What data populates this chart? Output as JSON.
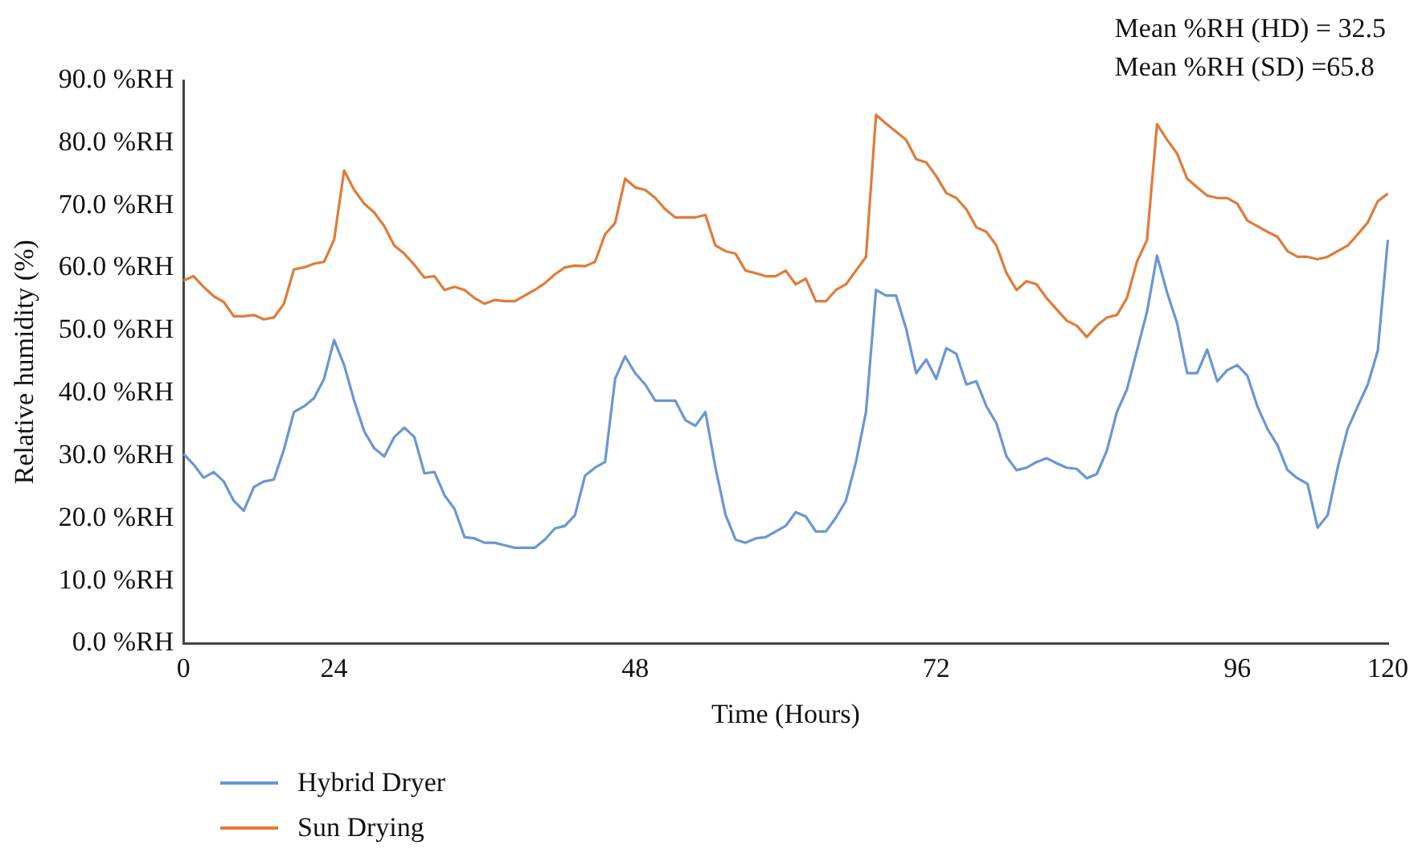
{
  "chart_data": {
    "type": "line",
    "xlabel": "Time (Hours)",
    "ylabel": "Relative humidity (%)",
    "categories": [
      "0",
      null,
      null,
      null,
      null,
      null,
      null,
      null,
      null,
      null,
      null,
      null,
      null,
      null,
      null,
      "24",
      null,
      null,
      null,
      null,
      null,
      null,
      null,
      null,
      null,
      null,
      null,
      null,
      null,
      null,
      null,
      null,
      null,
      null,
      null,
      null,
      null,
      null,
      null,
      null,
      null,
      null,
      null,
      null,
      null,
      "48",
      null,
      null,
      null,
      null,
      null,
      null,
      null,
      null,
      null,
      null,
      null,
      null,
      null,
      null,
      null,
      null,
      null,
      null,
      null,
      null,
      null,
      null,
      null,
      null,
      null,
      null,
      null,
      null,
      null,
      "72",
      null,
      null,
      null,
      null,
      null,
      null,
      null,
      null,
      null,
      null,
      null,
      null,
      null,
      null,
      null,
      null,
      null,
      null,
      null,
      null,
      null,
      null,
      null,
      null,
      null,
      null,
      null,
      null,
      null,
      "96",
      null,
      null,
      null,
      null,
      null,
      null,
      null,
      null,
      null,
      null,
      null,
      null,
      null,
      null,
      "120"
    ],
    "series": [
      {
        "name": "Hybrid Dryer",
        "color": "#6a96d4",
        "values": [
          30.3,
          28.6,
          26.5,
          27.4,
          25.9,
          22.8,
          21.2,
          25,
          25.9,
          26.2,
          31,
          37,
          37.9,
          39.2,
          42.3,
          48.5,
          44.5,
          38.8,
          33.9,
          31.2,
          29.9,
          33,
          34.5,
          33,
          27.2,
          27.4,
          23.7,
          21.5,
          17,
          16.8,
          16.1,
          16.1,
          15.7,
          15.3,
          15.3,
          15.3,
          16.6,
          18.4,
          18.8,
          20.5,
          26.8,
          28.1,
          29,
          42.3,
          45.9,
          43.2,
          41.4,
          38.8,
          38.8,
          38.8,
          35.7,
          34.8,
          37,
          28.1,
          20.6,
          16.6,
          16.1,
          16.8,
          17,
          17.9,
          18.8,
          21,
          20.3,
          17.9,
          17.9,
          20.1,
          22.8,
          29,
          37,
          56.5,
          55.6,
          55.6,
          50.3,
          43.2,
          45.4,
          42.3,
          47.2,
          46.3,
          41.4,
          41.9,
          37.9,
          35.2,
          29.9,
          27.7,
          28.1,
          29,
          29.6,
          28.8,
          28.1,
          27.9,
          26.4,
          27.1,
          30.8,
          37,
          40.6,
          46.8,
          53,
          62,
          56.1,
          51.2,
          43.2,
          43.2,
          47,
          41.9,
          43.7,
          44.5,
          42.8,
          37.9,
          34.3,
          31.7,
          27.7,
          26.4,
          25.5,
          18.5,
          20.5,
          28.1,
          34.3,
          37.9,
          41.4,
          46.8,
          64.5
        ]
      },
      {
        "name": "Sun Drying",
        "color": "#e07b39",
        "values": [
          58,
          58.7,
          57,
          55.5,
          54.6,
          52.3,
          52.3,
          52.5,
          51.8,
          52.1,
          54.3,
          59.8,
          60.1,
          60.7,
          61,
          64.5,
          75.6,
          72.5,
          70.3,
          68.9,
          66.7,
          63.6,
          62.3,
          60.5,
          58.5,
          58.7,
          56.5,
          57,
          56.5,
          55.2,
          54.3,
          54.9,
          54.7,
          54.7,
          55.6,
          56.5,
          57.6,
          59,
          60.1,
          60.4,
          60.3,
          61,
          65.4,
          67.2,
          74.3,
          72.9,
          72.5,
          71.2,
          69.4,
          68.1,
          68.1,
          68.1,
          68.5,
          63.6,
          62.7,
          62.3,
          59.6,
          59.2,
          58.7,
          58.7,
          59.6,
          57.4,
          58.3,
          54.7,
          54.7,
          56.5,
          57.4,
          59.6,
          61.8,
          84.5,
          83.1,
          81.8,
          80.5,
          77.4,
          76.9,
          74.7,
          72,
          71.2,
          69.4,
          66.5,
          65.8,
          63.6,
          59.2,
          56.5,
          57.9,
          57.4,
          55.2,
          53.4,
          51.6,
          50.8,
          49,
          50.8,
          52.1,
          52.5,
          55.2,
          61,
          64.5,
          83,
          80.5,
          78.3,
          74.3,
          72.9,
          71.6,
          71.2,
          71.2,
          70.3,
          67.6,
          66.7,
          65.8,
          65,
          62.7,
          61.8,
          61.8,
          61.4,
          61.8,
          62.7,
          63.6,
          65.4,
          67.3,
          70.7,
          71.9
        ]
      }
    ],
    "ylim": [
      0,
      90
    ],
    "yticks": [
      {
        "value": 0,
        "label": "0.0 %RH"
      },
      {
        "value": 10,
        "label": "10.0 %RH"
      },
      {
        "value": 20,
        "label": "20.0 %RH"
      },
      {
        "value": 30,
        "label": "30.0 %RH"
      },
      {
        "value": 40,
        "label": "40.0 %RH"
      },
      {
        "value": 50,
        "label": "50.0 %RH"
      },
      {
        "value": 60,
        "label": "60.0 %RH"
      },
      {
        "value": 70,
        "label": "70.0 %RH"
      },
      {
        "value": 80,
        "label": "80.0 %RH"
      },
      {
        "value": 90,
        "label": "90.0 %RH"
      }
    ],
    "legend": "bottom left",
    "line_style": "solid",
    "annotations": [
      "Mean %RH (HD) = 32.5",
      "Mean %RH (SD) =65.8"
    ]
  }
}
